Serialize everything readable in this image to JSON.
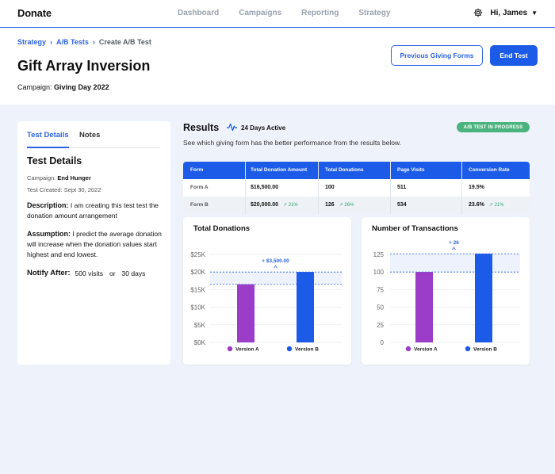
{
  "nav": {
    "logo": "Donate",
    "links": [
      "Dashboard",
      "Campaigns",
      "Reporting",
      "Strategy"
    ],
    "user": "Hi, James"
  },
  "breadcrumb": {
    "items": [
      "Strategy",
      "A/B Tests"
    ],
    "current": "Create A/B Test"
  },
  "page": {
    "title": "Gift Array Inversion",
    "campaign_label": "Campaign:",
    "campaign_value": "Giving Day 2022",
    "prev_button": "Previous Giving Forms",
    "end_button": "End Test"
  },
  "details": {
    "tabs": [
      "Test Details",
      "Notes"
    ],
    "title": "Test Details",
    "campaign_label": "Campaign:",
    "campaign_value": "End Hunger",
    "created": "Test Created: Sept 30, 2022",
    "description_label": "Description:",
    "description": "I am creating this test test the donation amount arrangement",
    "assumption_label": "Assumption:",
    "assumption": "I predict the average donation will increase when the donation values start highest and end lowest.",
    "notify_label": "Notify After:",
    "notify_visits": "500 visits",
    "notify_or": "or",
    "notify_days": "30 days"
  },
  "results": {
    "title": "Results",
    "active": "24 Days Active",
    "badge": "A/B TEST IN PROGRESS",
    "subtitle": "See which giving form has the better performance from the results below.",
    "colors": {
      "primary": "#1c5ae8",
      "purple": "#9b3dc8",
      "green": "#4bb37e"
    }
  },
  "table": {
    "headers": [
      "Form",
      "Total Donation Amount",
      "Total Donations",
      "Page Visits",
      "Conversion Rate"
    ],
    "rows": [
      {
        "form": "Form A",
        "amount": "$16,500.00",
        "amount_delta": "",
        "donations": "100",
        "donations_delta": "",
        "visits": "511",
        "rate": "19.5%",
        "rate_delta": ""
      },
      {
        "form": "Form B",
        "amount": "$20,000.00",
        "amount_delta": "21%",
        "donations": "126",
        "donations_delta": "26%",
        "visits": "534",
        "rate": "23.6%",
        "rate_delta": "21%"
      }
    ]
  },
  "chart_data": [
    {
      "type": "bar",
      "title": "Total Donations",
      "categories": [
        "Version A",
        "Version B"
      ],
      "values": [
        16500,
        20000
      ],
      "ylim": [
        0,
        25000
      ],
      "yticks": [
        "$0K",
        "$5K",
        "$10K",
        "$15K",
        "$20K",
        "$25K"
      ],
      "annotation": "+ $3,500.00",
      "colors": [
        "#9b3dc8",
        "#1c5ae8"
      ],
      "legend": [
        "Version A",
        "Version B"
      ],
      "legend_position": "bottom"
    },
    {
      "type": "bar",
      "title": "Number of Transactions",
      "categories": [
        "Version A",
        "Version B"
      ],
      "values": [
        100,
        126
      ],
      "ylim": [
        0,
        125
      ],
      "yticks": [
        "0",
        "25",
        "50",
        "75",
        "100",
        "125"
      ],
      "annotation": "+ 26",
      "colors": [
        "#9b3dc8",
        "#1c5ae8"
      ],
      "legend": [
        "Version A",
        "Version B"
      ],
      "legend_position": "bottom"
    }
  ]
}
